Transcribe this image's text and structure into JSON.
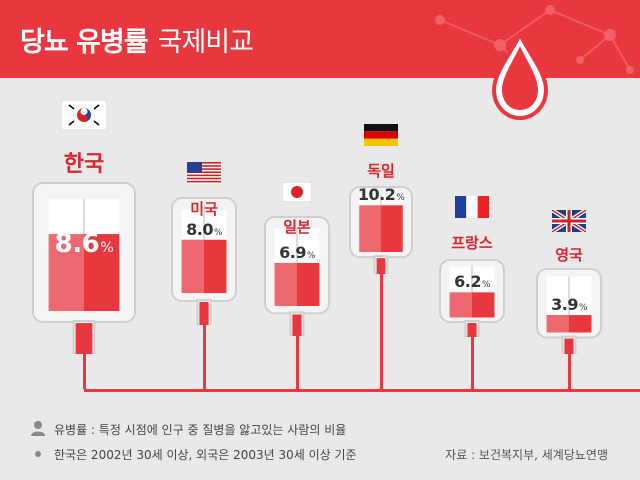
{
  "header": {
    "title_bold": "당뇨 유병률",
    "title_light": "국제비교"
  },
  "chart_data": {
    "type": "bar",
    "categories": [
      "한국",
      "미국",
      "일본",
      "독일",
      "프랑스",
      "영국"
    ],
    "values": [
      8.6,
      8.0,
      6.9,
      10.2,
      6.2,
      3.9
    ],
    "unit": "%",
    "value_labels": [
      "8.6",
      "8.0",
      "6.9",
      "10.2",
      "6.2",
      "3.9"
    ],
    "flags": [
      "korea-flag-icon",
      "usa-flag-icon",
      "japan-flag-icon",
      "germany-flag-icon",
      "france-flag-icon",
      "uk-flag-icon"
    ],
    "ylim": [
      0,
      12.5
    ]
  },
  "notes": {
    "definition": "유병률 : 특정 시점에 인구 중 질병을 앓고있는 사람의 비율",
    "basis": "한국은 2002년 30세 이상, 외국은 2003년 30세 이상 기준"
  },
  "source": "자료 : 보건복지부, 세계당뇨연맹",
  "colors": {
    "accent": "#e8373f",
    "fill": "#e8373f",
    "fill_light": "#f3aeb1",
    "bag_bg": "#f4f4f4",
    "bag_border": "#cfcfcf"
  }
}
